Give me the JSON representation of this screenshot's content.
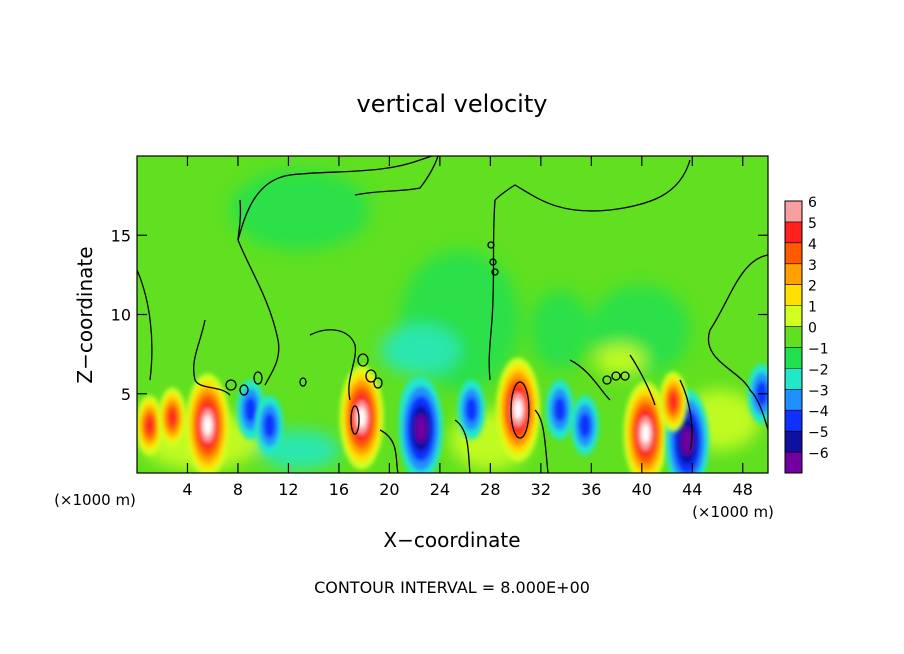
{
  "chart_data": {
    "type": "heatmap",
    "title": "vertical velocity",
    "xlabel": "X−coordinate",
    "ylabel": "Z−coordinate",
    "x_unit_left": "(×1000 m)",
    "x_unit_right": "(×1000 m)",
    "xlim": [
      0,
      50
    ],
    "ylim": [
      0,
      20
    ],
    "x_ticks": [
      4,
      8,
      12,
      16,
      20,
      24,
      28,
      32,
      36,
      40,
      44,
      48
    ],
    "x_tick_labels": [
      "4",
      "8",
      "12",
      "16",
      "20",
      "24",
      "28",
      "32",
      "36",
      "40",
      "44",
      "48"
    ],
    "y_ticks": [
      5,
      10,
      15
    ],
    "y_tick_labels": [
      "5",
      "10",
      "15"
    ],
    "colorbar": {
      "levels": [
        6,
        5,
        4,
        3,
        2,
        1,
        0,
        -1,
        -2,
        -3,
        -4,
        -5,
        -6
      ],
      "labels": [
        "6",
        "5",
        "4",
        "3",
        "2",
        "1",
        "0",
        "−1",
        "−2",
        "−3",
        "−4",
        "−5",
        "−6"
      ],
      "colors": [
        "#f8a0a0",
        "#ff2020",
        "#ff5a00",
        "#ffa000",
        "#ffe000",
        "#d0ff20",
        "#60e020",
        "#20e050",
        "#20e8c8",
        "#2090ff",
        "#1030ff",
        "#1010a0",
        "#7000a0"
      ]
    },
    "cells": [
      {
        "x": 1,
        "z": 3,
        "w": "pos"
      },
      {
        "x": 2.8,
        "z": 3.5,
        "w": "pos"
      },
      {
        "x": 5.6,
        "z": 3,
        "w": "peak_pos"
      },
      {
        "x": 9,
        "z": 4,
        "w": "neg"
      },
      {
        "x": 10.5,
        "z": 3,
        "w": "neg"
      },
      {
        "x": 17.8,
        "z": 3.5,
        "w": "peak_pos"
      },
      {
        "x": 22,
        "z": 4,
        "w": "neg"
      },
      {
        "x": 22.5,
        "z": 2.8,
        "w": "peak_neg"
      },
      {
        "x": 26.5,
        "z": 4,
        "w": "neg"
      },
      {
        "x": 30.2,
        "z": 4,
        "w": "peak_pos"
      },
      {
        "x": 33.5,
        "z": 4,
        "w": "neg"
      },
      {
        "x": 35.5,
        "z": 3,
        "w": "neg"
      },
      {
        "x": 40.3,
        "z": 2.5,
        "w": "peak_pos"
      },
      {
        "x": 43.6,
        "z": 2,
        "w": "peak_neg"
      },
      {
        "x": 42.5,
        "z": 4.5,
        "w": "pos"
      },
      {
        "x": 49.5,
        "z": 5,
        "w": "neg"
      }
    ]
  },
  "footer": {
    "contour_interval": "CONTOUR INTERVAL = 8.000E+00"
  }
}
